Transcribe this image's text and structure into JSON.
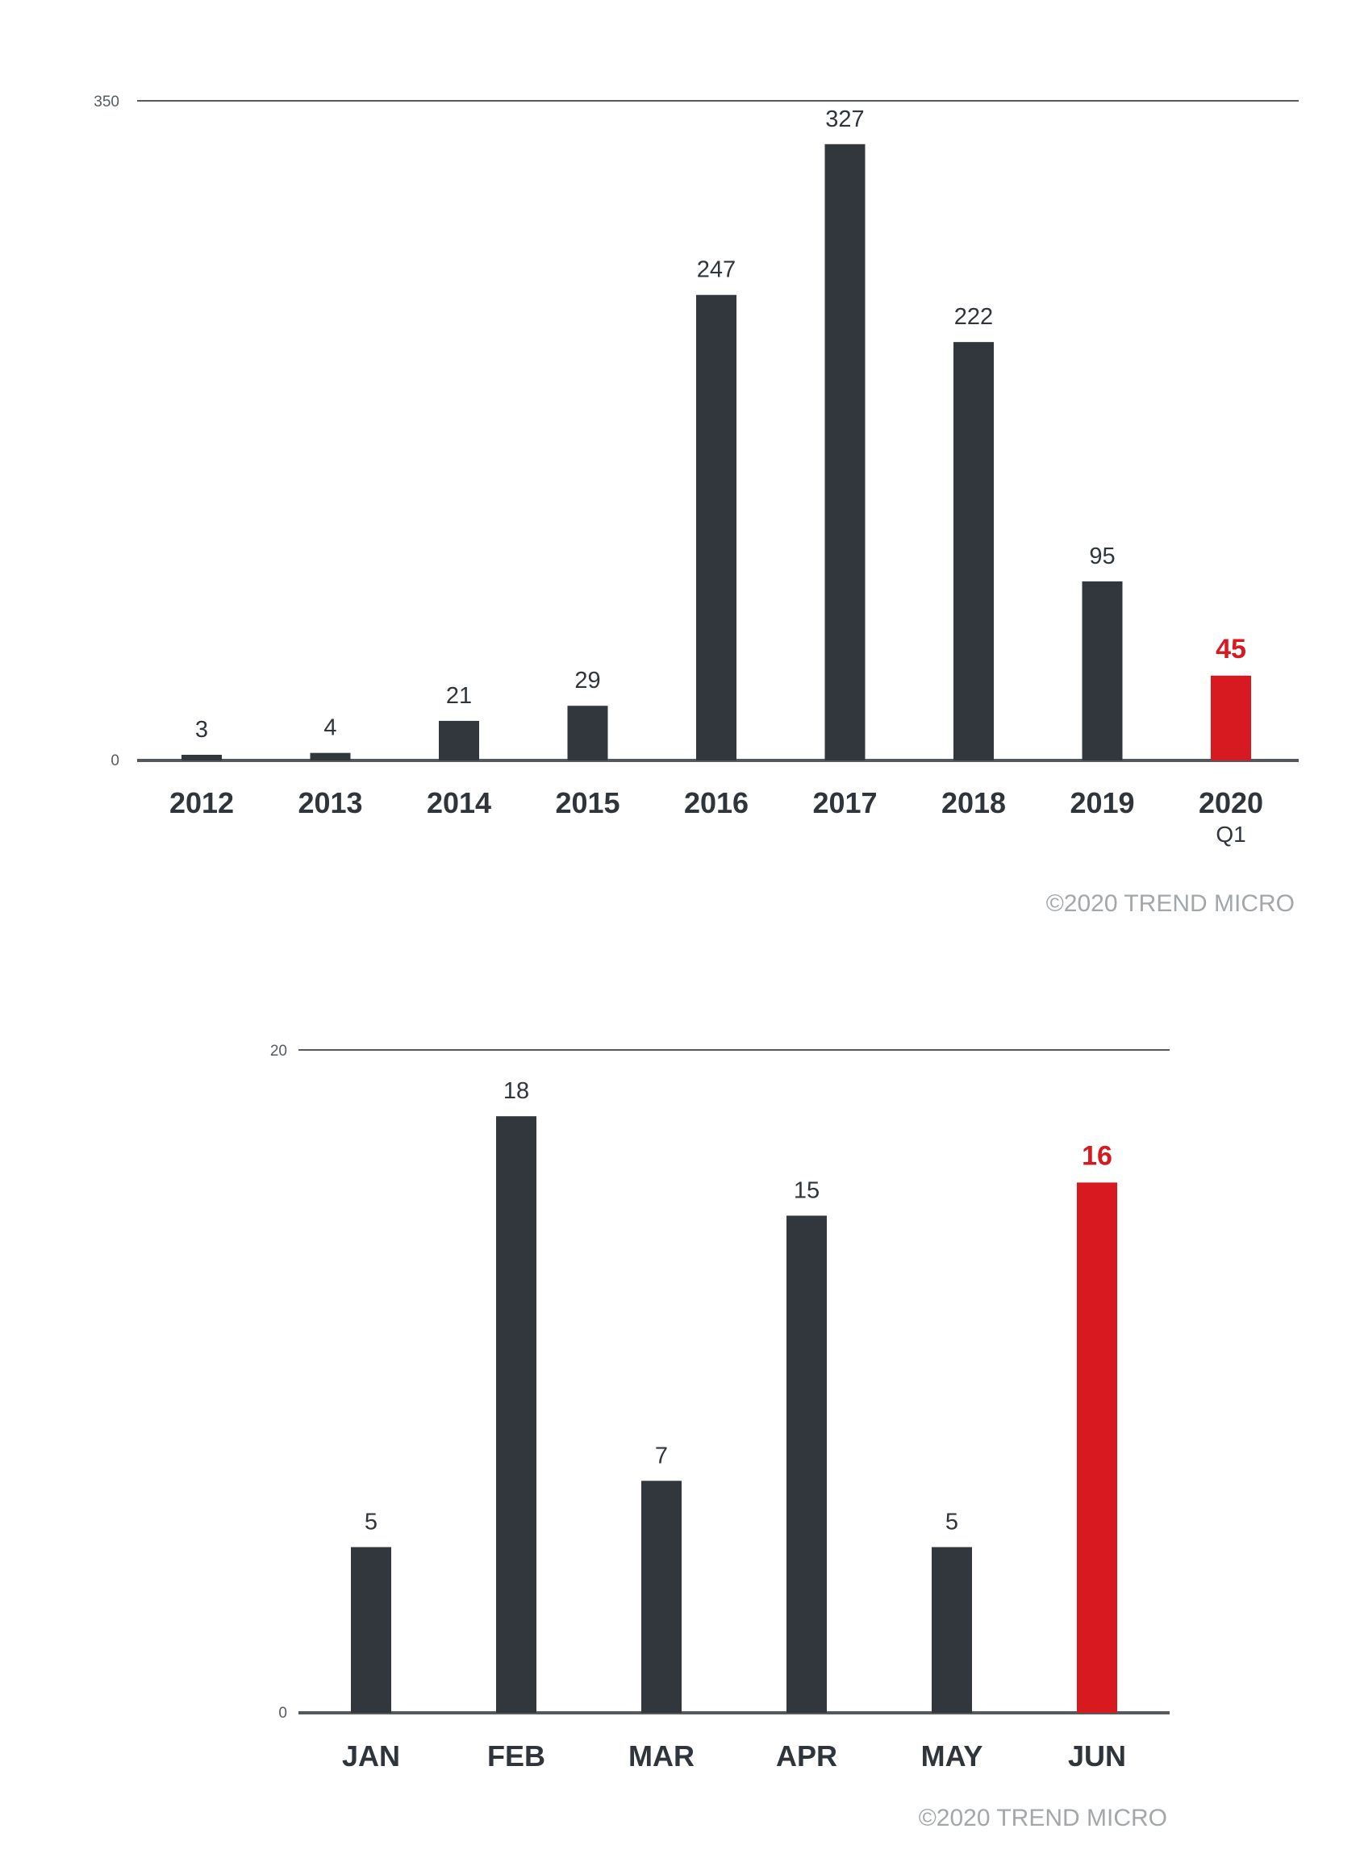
{
  "colors": {
    "bar": "#32373d",
    "highlight": "#d71920",
    "axis": "#55595e",
    "copyright": "#a3a7aa"
  },
  "chart_data": [
    {
      "type": "bar",
      "categories": [
        "2012",
        "2013",
        "2014",
        "2015",
        "2016",
        "2017",
        "2018",
        "2019",
        "2020"
      ],
      "sublabels": [
        "",
        "",
        "",
        "",
        "",
        "",
        "",
        "",
        "Q1"
      ],
      "values": [
        3,
        4,
        21,
        29,
        247,
        327,
        222,
        95,
        45
      ],
      "value_labels": [
        "3",
        "4",
        "21",
        "29",
        "247",
        "327",
        "222",
        "95",
        "45"
      ],
      "highlight_index": 8,
      "ylim": [
        0,
        350
      ],
      "y_tick_labels": [
        "0",
        "350"
      ],
      "grid": false,
      "title": "",
      "xlabel": "",
      "ylabel": "",
      "copyright": "©2020 TREND MICRO"
    },
    {
      "type": "bar",
      "categories": [
        "JAN",
        "FEB",
        "MAR",
        "APR",
        "MAY",
        "JUN"
      ],
      "sublabels": [
        "",
        "",
        "",
        "",
        "",
        ""
      ],
      "values": [
        5,
        18,
        7,
        15,
        5,
        16
      ],
      "value_labels": [
        "5",
        "18",
        "7",
        "15",
        "5",
        "16"
      ],
      "highlight_index": 5,
      "ylim": [
        0,
        20
      ],
      "y_tick_labels": [
        "0",
        "20"
      ],
      "grid": false,
      "title": "",
      "xlabel": "",
      "ylabel": "",
      "copyright": "©2020 TREND MICRO"
    }
  ]
}
